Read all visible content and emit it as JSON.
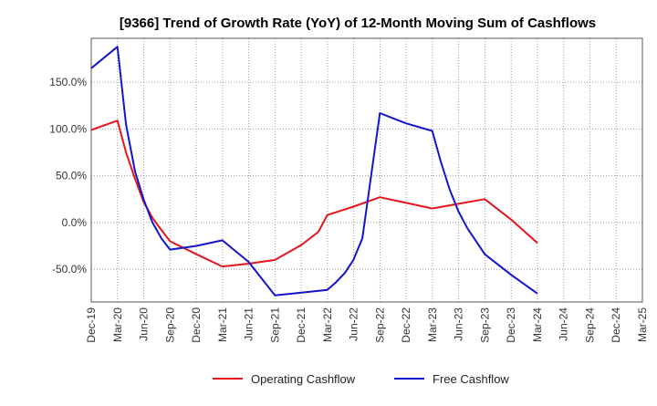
{
  "chart_data": {
    "type": "line",
    "title": "[9366]  Trend of Growth Rate (YoY) of 12-Month Moving Sum of Cashflows",
    "xlabel": "",
    "ylabel": "",
    "x": [
      "Dec-19",
      "Mar-20",
      "Jun-20",
      "Sep-20",
      "Dec-20",
      "Mar-21",
      "Jun-21",
      "Sep-21",
      "Dec-21",
      "Mar-22",
      "Jun-22",
      "Sep-22",
      "Dec-22",
      "Mar-23",
      "Jun-23",
      "Sep-23",
      "Dec-23",
      "Mar-24",
      "Jun-24",
      "Sep-24",
      "Dec-24",
      "Mar-25"
    ],
    "ylim": [
      -85,
      197
    ],
    "y_ticks": [
      -50,
      0,
      50,
      100,
      150
    ],
    "y_tick_labels": [
      "-50.0%",
      "0.0%",
      "50.0%",
      "100.0%",
      "150.0%"
    ],
    "grid": true,
    "legend_position": "bottom",
    "series": [
      {
        "name": "Operating Cashflow",
        "color": "#e8141b",
        "points": [
          [
            "2019-12-31",
            99
          ],
          [
            "2020-03-31",
            109
          ],
          [
            "2020-04-30",
            75
          ],
          [
            "2020-05-31",
            47
          ],
          [
            "2020-06-30",
            22
          ],
          [
            "2020-07-31",
            5
          ],
          [
            "2020-08-31",
            -8
          ],
          [
            "2020-09-30",
            -20
          ],
          [
            "2020-12-31",
            -34
          ],
          [
            "2021-03-31",
            -47
          ],
          [
            "2021-06-30",
            -44
          ],
          [
            "2021-09-30",
            -40
          ],
          [
            "2021-12-31",
            -24
          ],
          [
            "2022-02-28",
            -10
          ],
          [
            "2022-03-31",
            8
          ],
          [
            "2022-06-30",
            17
          ],
          [
            "2022-09-30",
            27
          ],
          [
            "2022-12-31",
            21
          ],
          [
            "2023-03-31",
            15
          ],
          [
            "2023-06-30",
            20
          ],
          [
            "2023-09-30",
            25
          ],
          [
            "2023-12-31",
            3
          ],
          [
            "2024-03-31",
            -22
          ]
        ]
      },
      {
        "name": "Free Cashflow",
        "color": "#1414cc",
        "points": [
          [
            "2019-12-31",
            165
          ],
          [
            "2020-03-31",
            188
          ],
          [
            "2020-04-30",
            105
          ],
          [
            "2020-05-31",
            55
          ],
          [
            "2020-06-30",
            25
          ],
          [
            "2020-07-31",
            0
          ],
          [
            "2020-08-31",
            -17
          ],
          [
            "2020-09-30",
            -29
          ],
          [
            "2020-12-31",
            -25
          ],
          [
            "2021-03-31",
            -19
          ],
          [
            "2021-06-30",
            -42
          ],
          [
            "2021-09-30",
            -78
          ],
          [
            "2021-12-31",
            -75
          ],
          [
            "2022-03-31",
            -72
          ],
          [
            "2022-04-30",
            -64
          ],
          [
            "2022-05-31",
            -54
          ],
          [
            "2022-06-30",
            -40
          ],
          [
            "2022-07-31",
            -17
          ],
          [
            "2022-09-30",
            117
          ],
          [
            "2022-12-31",
            106
          ],
          [
            "2023-03-31",
            98
          ],
          [
            "2023-04-30",
            65
          ],
          [
            "2023-05-31",
            35
          ],
          [
            "2023-06-30",
            12
          ],
          [
            "2023-07-31",
            -6
          ],
          [
            "2023-09-30",
            -34
          ],
          [
            "2023-12-31",
            -56
          ],
          [
            "2024-03-31",
            -76
          ]
        ]
      }
    ]
  }
}
